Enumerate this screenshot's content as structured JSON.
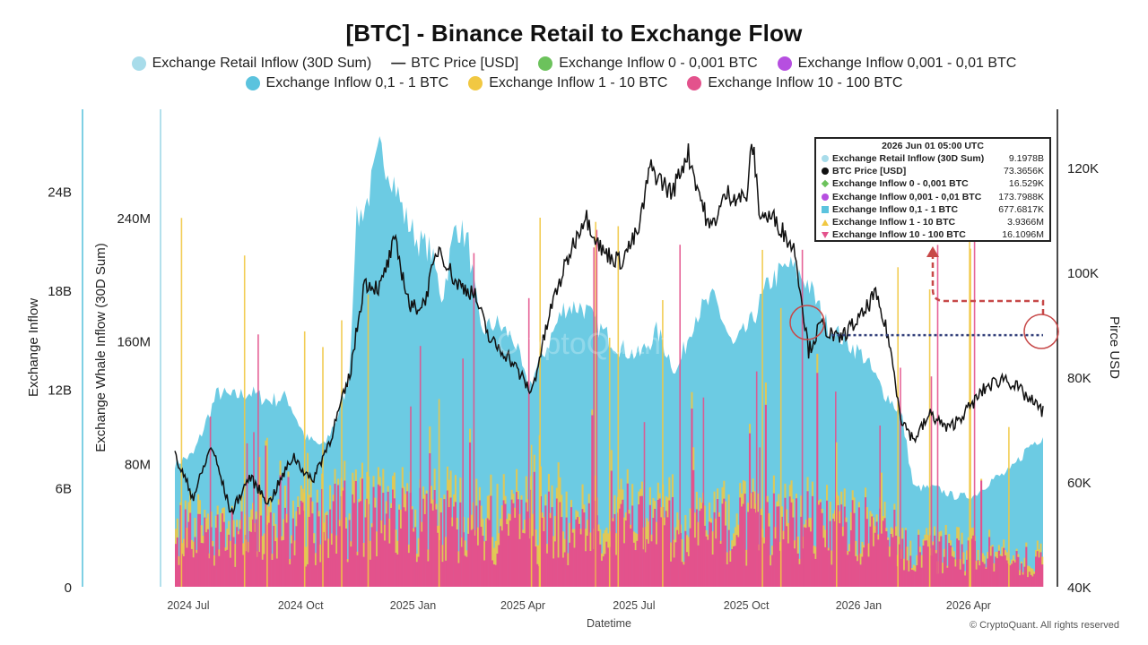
{
  "chart_data": {
    "type": "area",
    "title": "[BTC] - Binance Retail to Exchange Flow",
    "xlabel": "Datetime",
    "x_ticks": [
      "2024 Jul",
      "2024 Oct",
      "2025 Jan",
      "2025 Apr",
      "2025 Jul",
      "2025 Oct",
      "2026 Jan",
      "2026 Apr"
    ],
    "x_range": [
      "2024-06-20",
      "2026-06-01"
    ],
    "axes": [
      {
        "id": "y1",
        "label": "Exchange Inflow",
        "ticks": [
          "0",
          "6B",
          "12B",
          "18B",
          "24B"
        ],
        "range": [
          0,
          28000000000
        ]
      },
      {
        "id": "y2",
        "label": "Exchange Whale Inflow (30D Sum)",
        "ticks": [
          "80M",
          "160M",
          "240M"
        ],
        "range": [
          0,
          300000000
        ]
      },
      {
        "id": "y3",
        "label": "Pirce USD",
        "ticks": [
          "40K",
          "60K",
          "80K",
          "100K",
          "120K"
        ],
        "range": [
          40000,
          128000
        ]
      }
    ],
    "legend": [
      {
        "name": "Exchange Retail Inflow (30D Sum)",
        "color": "#a8dcea",
        "marker": "dot"
      },
      {
        "name": "BTC Price [USD]",
        "color": "#111111",
        "marker": "line"
      },
      {
        "name": "Exchange Inflow 0 - 0,001 BTC",
        "color": "#6cc25c",
        "marker": "dot"
      },
      {
        "name": "Exchange Inflow 0,001 - 0,01 BTC",
        "color": "#b64fe0",
        "marker": "dot"
      },
      {
        "name": "Exchange Inflow 0,1 - 1 BTC",
        "color": "#5bc3de",
        "marker": "dot"
      },
      {
        "name": "Exchange Inflow 1 - 10 BTC",
        "color": "#f1c842",
        "marker": "dot"
      },
      {
        "name": "Exchange Inflow 10 - 100 BTC",
        "color": "#e3528c",
        "marker": "dot"
      }
    ],
    "series": [
      {
        "name": "Exchange Retail Inflow (30D Sum)",
        "axis": "y1",
        "color": "#6ccbe3",
        "points": [
          [
            "2024-06-20",
            7500000000.0
          ],
          [
            "2024-07-05",
            8000000000.0
          ],
          [
            "2024-07-25",
            11800000000.0
          ],
          [
            "2024-08-05",
            11500000000.0
          ],
          [
            "2024-08-20",
            11800000000.0
          ],
          [
            "2024-09-05",
            11300000000.0
          ],
          [
            "2024-09-20",
            11500000000.0
          ],
          [
            "2024-10-05",
            9000000000.0
          ],
          [
            "2024-10-20",
            8500000000.0
          ],
          [
            "2024-11-01",
            10500000000.0
          ],
          [
            "2024-11-10",
            12800000000.0
          ],
          [
            "2024-11-15",
            22000000000.0
          ],
          [
            "2024-11-25",
            23500000000.0
          ],
          [
            "2024-12-05",
            26500000000.0
          ],
          [
            "2024-12-15",
            25000000000.0
          ],
          [
            "2024-12-25",
            22500000000.0
          ],
          [
            "2025-01-05",
            21000000000.0
          ],
          [
            "2025-01-15",
            20500000000.0
          ],
          [
            "2025-01-25",
            17500000000.0
          ],
          [
            "2025-02-05",
            22000000000.0
          ],
          [
            "2025-02-15",
            21000000000.0
          ],
          [
            "2025-02-25",
            15500000000.0
          ],
          [
            "2025-03-10",
            16000000000.0
          ],
          [
            "2025-03-25",
            15000000000.0
          ],
          [
            "2025-04-05",
            12000000000.0
          ],
          [
            "2025-04-20",
            14500000000.0
          ],
          [
            "2025-05-05",
            17000000000.0
          ],
          [
            "2025-05-20",
            17000000000.0
          ],
          [
            "2025-06-05",
            15500000000.0
          ],
          [
            "2025-06-20",
            14500000000.0
          ],
          [
            "2025-07-05",
            14000000000.0
          ],
          [
            "2025-07-20",
            15500000000.0
          ],
          [
            "2025-08-05",
            13000000000.0
          ],
          [
            "2025-08-20",
            16500000000.0
          ],
          [
            "2025-09-05",
            17500000000.0
          ],
          [
            "2025-09-20",
            14500000000.0
          ],
          [
            "2025-10-05",
            16000000000.0
          ],
          [
            "2025-10-20",
            18500000000.0
          ],
          [
            "2025-11-05",
            19500000000.0
          ],
          [
            "2025-11-20",
            18500000000.0
          ],
          [
            "2025-12-05",
            16000000000.0
          ],
          [
            "2025-12-20",
            15000000000.0
          ],
          [
            "2026-01-05",
            14000000000.0
          ],
          [
            "2026-01-20",
            12000000000.0
          ],
          [
            "2026-02-05",
            10500000000.0
          ],
          [
            "2026-02-15",
            6000000000.0
          ],
          [
            "2026-03-05",
            6000000000.0
          ],
          [
            "2026-03-20",
            5500000000.0
          ],
          [
            "2026-04-05",
            5500000000.0
          ],
          [
            "2026-04-20",
            6500000000.0
          ],
          [
            "2026-05-05",
            7000000000.0
          ],
          [
            "2026-05-20",
            8500000000.0
          ],
          [
            "2026-06-01",
            9197800000.0
          ]
        ]
      },
      {
        "name": "BTC Price [USD]",
        "axis": "y3",
        "color": "#111111",
        "points": [
          [
            "2024-06-20",
            65000
          ],
          [
            "2024-07-05",
            57000
          ],
          [
            "2024-07-20",
            67000
          ],
          [
            "2024-08-05",
            54000
          ],
          [
            "2024-08-20",
            61000
          ],
          [
            "2024-09-05",
            56000
          ],
          [
            "2024-09-25",
            65000
          ],
          [
            "2024-10-10",
            60000
          ],
          [
            "2024-10-25",
            68000
          ],
          [
            "2024-11-10",
            80000
          ],
          [
            "2024-11-22",
            98000
          ],
          [
            "2024-12-05",
            97000
          ],
          [
            "2024-12-17",
            106000
          ],
          [
            "2024-12-30",
            93000
          ],
          [
            "2025-01-10",
            94000
          ],
          [
            "2025-01-22",
            105000
          ],
          [
            "2025-02-05",
            98000
          ],
          [
            "2025-02-20",
            96000
          ],
          [
            "2025-03-05",
            87000
          ],
          [
            "2025-03-20",
            84000
          ],
          [
            "2025-04-08",
            77000
          ],
          [
            "2025-04-25",
            94000
          ],
          [
            "2025-05-10",
            104000
          ],
          [
            "2025-05-22",
            111000
          ],
          [
            "2025-06-05",
            104000
          ],
          [
            "2025-06-20",
            102000
          ],
          [
            "2025-07-05",
            108000
          ],
          [
            "2025-07-14",
            120000
          ],
          [
            "2025-08-01",
            115000
          ],
          [
            "2025-08-14",
            123000
          ],
          [
            "2025-09-01",
            108000
          ],
          [
            "2025-09-15",
            115000
          ],
          [
            "2025-10-01",
            114000
          ],
          [
            "2025-10-06",
            125000
          ],
          [
            "2025-10-12",
            111000
          ],
          [
            "2025-10-25",
            110000
          ],
          [
            "2025-11-10",
            104000
          ],
          [
            "2025-11-21",
            85000
          ],
          [
            "2025-12-01",
            90000
          ],
          [
            "2025-12-15",
            87000
          ],
          [
            "2026-01-05",
            92000
          ],
          [
            "2026-01-14",
            96000
          ],
          [
            "2026-01-25",
            88000
          ],
          [
            "2026-02-05",
            72000
          ],
          [
            "2026-02-15",
            68000
          ],
          [
            "2026-03-01",
            73000
          ],
          [
            "2026-03-15",
            70000
          ],
          [
            "2026-04-01",
            74000
          ],
          [
            "2026-04-15",
            78000
          ],
          [
            "2026-05-01",
            80000
          ],
          [
            "2026-05-15",
            77000
          ],
          [
            "2026-06-01",
            73365.6
          ]
        ]
      },
      {
        "name": "Exchange Inflow 10 - 100 BTC",
        "axis": "y2",
        "color": "#e3528c",
        "points": [
          [
            "2024-06-20",
            35000000.0
          ],
          [
            "2024-09-01",
            30000000.0
          ],
          [
            "2024-11-15",
            45000000.0
          ],
          [
            "2025-01-15",
            40000000.0
          ],
          [
            "2025-05-01",
            38000000.0
          ],
          [
            "2025-09-01",
            36000000.0
          ],
          [
            "2025-11-20",
            40000000.0
          ],
          [
            "2026-01-25",
            34000000.0
          ],
          [
            "2026-02-15",
            22000000.0
          ],
          [
            "2026-04-15",
            20000000.0
          ],
          [
            "2026-06-01",
            16109600.0
          ]
        ]
      },
      {
        "name": "Exchange Inflow 1 - 10 BTC",
        "axis": "y2",
        "color": "#f1c842",
        "points": [
          [
            "2024-06-20",
            8000000.0
          ],
          [
            "2025-01-15",
            10000000.0
          ],
          [
            "2025-10-01",
            9000000.0
          ],
          [
            "2026-03-01",
            5000000.0
          ],
          [
            "2026-06-01",
            3936600.0
          ]
        ]
      }
    ],
    "hover": {
      "date": "2026 Jun 01 05:00 UTC",
      "rows": [
        {
          "label": "Exchange Retail Inflow (30D Sum)",
          "value": "9.1978B",
          "color": "#a8dcea",
          "marker": "circle"
        },
        {
          "label": "BTC Price [USD]",
          "value": "73.3656K",
          "color": "#111111",
          "marker": "circle"
        },
        {
          "label": "Exchange Inflow 0 - 0,001 BTC",
          "value": "16.529K",
          "color": "#6cc25c",
          "marker": "diamond"
        },
        {
          "label": "Exchange Inflow 0,001 - 0,01 BTC",
          "value": "173.7988K",
          "color": "#b64fe0",
          "marker": "circle"
        },
        {
          "label": "Exchange Inflow 0,1 - 1 BTC",
          "value": "677.6817K",
          "color": "#5bc3de",
          "marker": "square"
        },
        {
          "label": "Exchange Inflow 1 - 10 BTC",
          "value": "3.9366M",
          "color": "#f1c842",
          "marker": "triangle-up"
        },
        {
          "label": "Exchange Inflow 10 - 100 BTC",
          "value": "16.1096M",
          "color": "#e3528c",
          "marker": "triangle-down"
        }
      ]
    },
    "reference_line": {
      "axis": "y3",
      "value": 88000,
      "from": "2025-12-10",
      "to": "2026-06-01",
      "style": "dotted",
      "color": "#33407a"
    },
    "annotation_arrow_color": "#c74848",
    "watermark": "CryptoQuant"
  },
  "footer": "© CryptoQuant. All rights reserved"
}
